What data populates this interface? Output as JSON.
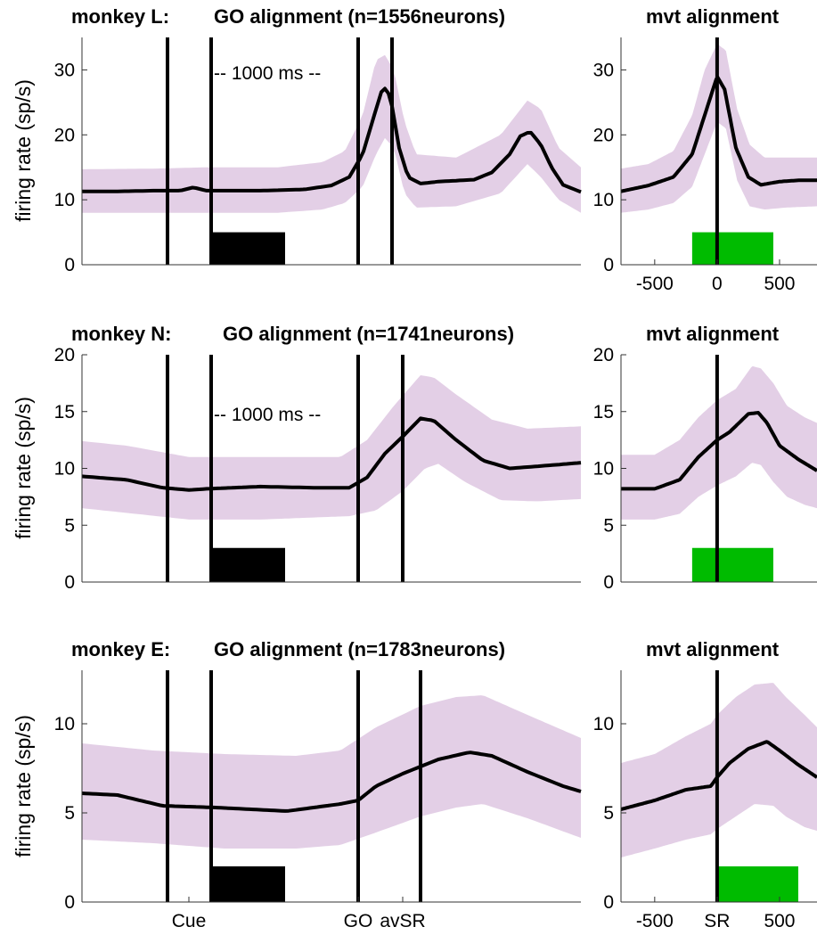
{
  "chart_data": [
    {
      "panel": "monkey-L-go",
      "type": "line",
      "title_prefix": "monkey L:",
      "title": "GO alignment (n=1556neurons)",
      "ylabel": "firing rate (sp/s)",
      "ylim": [
        0,
        35
      ],
      "yticks": [
        0,
        10,
        20,
        30
      ],
      "duration_label": "-- 1000 ms --",
      "xlim": [
        0,
        560
      ],
      "events": [
        {
          "x": 96
        },
        {
          "x": 145
        },
        {
          "x": 310
        },
        {
          "x": 348
        }
      ],
      "bar": {
        "x0": 145,
        "x1": 228,
        "y": 5,
        "color": "#000000"
      },
      "mean": [
        [
          0,
          11.3
        ],
        [
          40,
          11.3
        ],
        [
          80,
          11.4
        ],
        [
          110,
          11.4
        ],
        [
          125,
          11.9
        ],
        [
          140,
          11.4
        ],
        [
          200,
          11.4
        ],
        [
          250,
          11.6
        ],
        [
          280,
          12.2
        ],
        [
          300,
          13.5
        ],
        [
          315,
          17
        ],
        [
          328,
          23
        ],
        [
          338,
          27.5
        ],
        [
          346,
          26
        ],
        [
          356,
          18
        ],
        [
          366,
          13.5
        ],
        [
          380,
          12.5
        ],
        [
          400,
          12.8
        ],
        [
          440,
          13.1
        ],
        [
          460,
          14.2
        ],
        [
          480,
          17
        ],
        [
          492,
          19.8
        ],
        [
          503,
          20.5
        ],
        [
          515,
          18.5
        ],
        [
          527,
          15
        ],
        [
          540,
          12.3
        ],
        [
          560,
          11.2
        ]
      ],
      "band_upper": [
        [
          0,
          14.7
        ],
        [
          80,
          14.8
        ],
        [
          140,
          15
        ],
        [
          220,
          15
        ],
        [
          270,
          15.8
        ],
        [
          295,
          17.5
        ],
        [
          315,
          23
        ],
        [
          330,
          31.5
        ],
        [
          340,
          32.3
        ],
        [
          350,
          30
        ],
        [
          362,
          22
        ],
        [
          375,
          17
        ],
        [
          420,
          16.5
        ],
        [
          470,
          20
        ],
        [
          500,
          25.3
        ],
        [
          515,
          24
        ],
        [
          535,
          18
        ],
        [
          560,
          15
        ]
      ],
      "band_lower": [
        [
          0,
          8
        ],
        [
          80,
          8
        ],
        [
          140,
          8
        ],
        [
          220,
          8
        ],
        [
          270,
          8.5
        ],
        [
          295,
          9.5
        ],
        [
          315,
          12
        ],
        [
          330,
          17
        ],
        [
          340,
          19.5
        ],
        [
          350,
          18
        ],
        [
          362,
          11
        ],
        [
          375,
          8.8
        ],
        [
          420,
          9
        ],
        [
          470,
          11
        ],
        [
          500,
          15.5
        ],
        [
          515,
          13.5
        ],
        [
          535,
          10
        ],
        [
          560,
          8
        ]
      ]
    },
    {
      "panel": "monkey-L-mvt",
      "type": "line",
      "title": "mvt alignment",
      "ylim": [
        0,
        35
      ],
      "yticks": [
        0,
        10,
        20,
        30
      ],
      "xlim": [
        -770,
        800
      ],
      "xticks": [
        -500,
        0,
        500
      ],
      "events": [
        {
          "x": 0
        }
      ],
      "bar": {
        "x0": -200,
        "x1": 450,
        "y": 5,
        "color": "#00bb00"
      },
      "mean": [
        [
          -770,
          11.3
        ],
        [
          -550,
          12.2
        ],
        [
          -350,
          13.5
        ],
        [
          -200,
          17
        ],
        [
          -100,
          23
        ],
        [
          0,
          29
        ],
        [
          60,
          27
        ],
        [
          150,
          18
        ],
        [
          250,
          13.5
        ],
        [
          350,
          12.3
        ],
        [
          500,
          12.8
        ],
        [
          650,
          13
        ],
        [
          800,
          13
        ]
      ],
      "band_upper": [
        [
          -770,
          14.8
        ],
        [
          -550,
          15.5
        ],
        [
          -350,
          17.5
        ],
        [
          -200,
          23
        ],
        [
          -100,
          30
        ],
        [
          0,
          34
        ],
        [
          70,
          33
        ],
        [
          160,
          24
        ],
        [
          260,
          18.5
        ],
        [
          380,
          16.5
        ],
        [
          550,
          16.5
        ],
        [
          800,
          16.5
        ]
      ],
      "band_lower": [
        [
          -770,
          8
        ],
        [
          -550,
          8.5
        ],
        [
          -350,
          9.5
        ],
        [
          -200,
          12
        ],
        [
          -100,
          17
        ],
        [
          0,
          22
        ],
        [
          70,
          21
        ],
        [
          160,
          13
        ],
        [
          260,
          9
        ],
        [
          380,
          8.5
        ],
        [
          550,
          8.8
        ],
        [
          800,
          9
        ]
      ]
    },
    {
      "panel": "monkey-N-go",
      "type": "line",
      "title_prefix": "monkey N:",
      "title": "GO alignment (n=1741neurons)",
      "ylabel": "firing rate (sp/s)",
      "ylim": [
        0,
        20
      ],
      "yticks": [
        0,
        5,
        10,
        15,
        20
      ],
      "duration_label": "-- 1000 ms --",
      "xlim": [
        0,
        560
      ],
      "events": [
        {
          "x": 96
        },
        {
          "x": 145
        },
        {
          "x": 310
        },
        {
          "x": 360
        }
      ],
      "bar": {
        "x0": 145,
        "x1": 228,
        "y": 3,
        "color": "#000000"
      },
      "mean": [
        [
          0,
          9.3
        ],
        [
          50,
          9
        ],
        [
          90,
          8.3
        ],
        [
          120,
          8.1
        ],
        [
          140,
          8.2
        ],
        [
          200,
          8.4
        ],
        [
          260,
          8.3
        ],
        [
          300,
          8.3
        ],
        [
          320,
          9.2
        ],
        [
          340,
          11.3
        ],
        [
          360,
          12.8
        ],
        [
          380,
          14.4
        ],
        [
          395,
          14.2
        ],
        [
          420,
          12.5
        ],
        [
          450,
          10.7
        ],
        [
          480,
          10
        ],
        [
          530,
          10.3
        ],
        [
          560,
          10.5
        ]
      ],
      "band_upper": [
        [
          0,
          12.4
        ],
        [
          50,
          12
        ],
        [
          120,
          11
        ],
        [
          200,
          11
        ],
        [
          290,
          11
        ],
        [
          320,
          12.5
        ],
        [
          350,
          15.5
        ],
        [
          380,
          18.2
        ],
        [
          395,
          18
        ],
        [
          420,
          16.5
        ],
        [
          460,
          14.3
        ],
        [
          500,
          13.5
        ],
        [
          560,
          13.7
        ]
      ],
      "band_lower": [
        [
          0,
          6.5
        ],
        [
          60,
          6
        ],
        [
          120,
          5.5
        ],
        [
          200,
          5.5
        ],
        [
          300,
          5.8
        ],
        [
          330,
          6.3
        ],
        [
          360,
          8
        ],
        [
          385,
          10
        ],
        [
          400,
          10.4
        ],
        [
          430,
          8.8
        ],
        [
          470,
          7.2
        ],
        [
          510,
          7.1
        ],
        [
          560,
          7.3
        ]
      ]
    },
    {
      "panel": "monkey-N-mvt",
      "type": "line",
      "title": "mvt alignment",
      "ylim": [
        0,
        20
      ],
      "yticks": [
        0,
        5,
        10,
        15,
        20
      ],
      "xlim": [
        -770,
        800
      ],
      "events": [
        {
          "x": 0
        }
      ],
      "bar": {
        "x0": -200,
        "x1": 450,
        "y": 3,
        "color": "#00bb00"
      },
      "mean": [
        [
          -770,
          8.2
        ],
        [
          -500,
          8.2
        ],
        [
          -300,
          9
        ],
        [
          -150,
          11
        ],
        [
          0,
          12.5
        ],
        [
          100,
          13.2
        ],
        [
          250,
          14.8
        ],
        [
          330,
          14.9
        ],
        [
          400,
          14
        ],
        [
          500,
          12
        ],
        [
          650,
          10.8
        ],
        [
          800,
          9.8
        ]
      ],
      "band_upper": [
        [
          -770,
          11.2
        ],
        [
          -500,
          11.2
        ],
        [
          -300,
          12.5
        ],
        [
          -150,
          14.5
        ],
        [
          0,
          16
        ],
        [
          150,
          17
        ],
        [
          280,
          19
        ],
        [
          350,
          18.8
        ],
        [
          450,
          17.5
        ],
        [
          560,
          15.5
        ],
        [
          700,
          14.5
        ],
        [
          800,
          14
        ]
      ],
      "band_lower": [
        [
          -770,
          5.5
        ],
        [
          -500,
          5.5
        ],
        [
          -300,
          6
        ],
        [
          -150,
          7.5
        ],
        [
          0,
          8.5
        ],
        [
          150,
          9.3
        ],
        [
          280,
          10.5
        ],
        [
          350,
          10.3
        ],
        [
          450,
          8.8
        ],
        [
          560,
          7.5
        ],
        [
          700,
          6.8
        ],
        [
          800,
          6.5
        ]
      ]
    },
    {
      "panel": "monkey-E-go",
      "type": "line",
      "title_prefix": "monkey E:",
      "title": "GO alignment (n=1783neurons)",
      "ylabel": "firing rate (sp/s)",
      "ylim": [
        0,
        13
      ],
      "yticks": [
        0,
        5,
        10
      ],
      "xlim": [
        0,
        560
      ],
      "xticks": [
        "Cue",
        "GO",
        "avSR"
      ],
      "xtick_pos": [
        120,
        310,
        360
      ],
      "events": [
        {
          "x": 96
        },
        {
          "x": 145
        },
        {
          "x": 310
        },
        {
          "x": 380
        }
      ],
      "bar": {
        "x0": 145,
        "x1": 228,
        "y": 2,
        "color": "#000000"
      },
      "mean": [
        [
          0,
          6.1
        ],
        [
          40,
          6
        ],
        [
          90,
          5.4
        ],
        [
          150,
          5.3
        ],
        [
          230,
          5.1
        ],
        [
          290,
          5.5
        ],
        [
          310,
          5.7
        ],
        [
          330,
          6.5
        ],
        [
          360,
          7.2
        ],
        [
          400,
          8
        ],
        [
          435,
          8.4
        ],
        [
          460,
          8.2
        ],
        [
          500,
          7.3
        ],
        [
          540,
          6.5
        ],
        [
          560,
          6.2
        ]
      ],
      "band_upper": [
        [
          0,
          8.9
        ],
        [
          80,
          8.5
        ],
        [
          160,
          8.3
        ],
        [
          240,
          8.2
        ],
        [
          290,
          8.5
        ],
        [
          330,
          9.8
        ],
        [
          380,
          11
        ],
        [
          420,
          11.5
        ],
        [
          450,
          11.6
        ],
        [
          500,
          10.5
        ],
        [
          560,
          9.2
        ]
      ],
      "band_lower": [
        [
          0,
          3.5
        ],
        [
          80,
          3.3
        ],
        [
          160,
          3
        ],
        [
          240,
          3
        ],
        [
          290,
          3.2
        ],
        [
          330,
          3.9
        ],
        [
          380,
          4.8
        ],
        [
          420,
          5.3
        ],
        [
          450,
          5.5
        ],
        [
          500,
          4.7
        ],
        [
          560,
          3.6
        ]
      ]
    },
    {
      "panel": "monkey-E-mvt",
      "type": "line",
      "title": "mvt alignment",
      "ylim": [
        0,
        13
      ],
      "yticks": [
        0,
        5,
        10
      ],
      "xlim": [
        -770,
        800
      ],
      "xticks": [
        "-500",
        "SR",
        "500"
      ],
      "xtick_pos": [
        -500,
        0,
        500
      ],
      "events": [
        {
          "x": 0
        }
      ],
      "bar": {
        "x0": 0,
        "x1": 650,
        "y": 2,
        "color": "#00bb00"
      },
      "mean": [
        [
          -770,
          5.2
        ],
        [
          -500,
          5.7
        ],
        [
          -250,
          6.3
        ],
        [
          -50,
          6.5
        ],
        [
          0,
          7
        ],
        [
          100,
          7.8
        ],
        [
          250,
          8.6
        ],
        [
          400,
          9
        ],
        [
          500,
          8.5
        ],
        [
          650,
          7.7
        ],
        [
          800,
          7
        ]
      ],
      "band_upper": [
        [
          -770,
          7.8
        ],
        [
          -500,
          8.3
        ],
        [
          -250,
          9.3
        ],
        [
          -50,
          10
        ],
        [
          0,
          10.5
        ],
        [
          150,
          11.5
        ],
        [
          300,
          12.2
        ],
        [
          450,
          12.3
        ],
        [
          550,
          11.5
        ],
        [
          700,
          10.5
        ],
        [
          800,
          9.8
        ]
      ],
      "band_lower": [
        [
          -770,
          2.5
        ],
        [
          -500,
          3
        ],
        [
          -250,
          3.5
        ],
        [
          -50,
          3.8
        ],
        [
          0,
          4.1
        ],
        [
          150,
          4.8
        ],
        [
          300,
          5.5
        ],
        [
          450,
          5.4
        ],
        [
          550,
          4.8
        ],
        [
          700,
          4.2
        ],
        [
          800,
          4
        ]
      ]
    }
  ],
  "style": {
    "band_color": "#e3cfe6",
    "mean_color": "#000000",
    "axis_color": "#333333"
  }
}
